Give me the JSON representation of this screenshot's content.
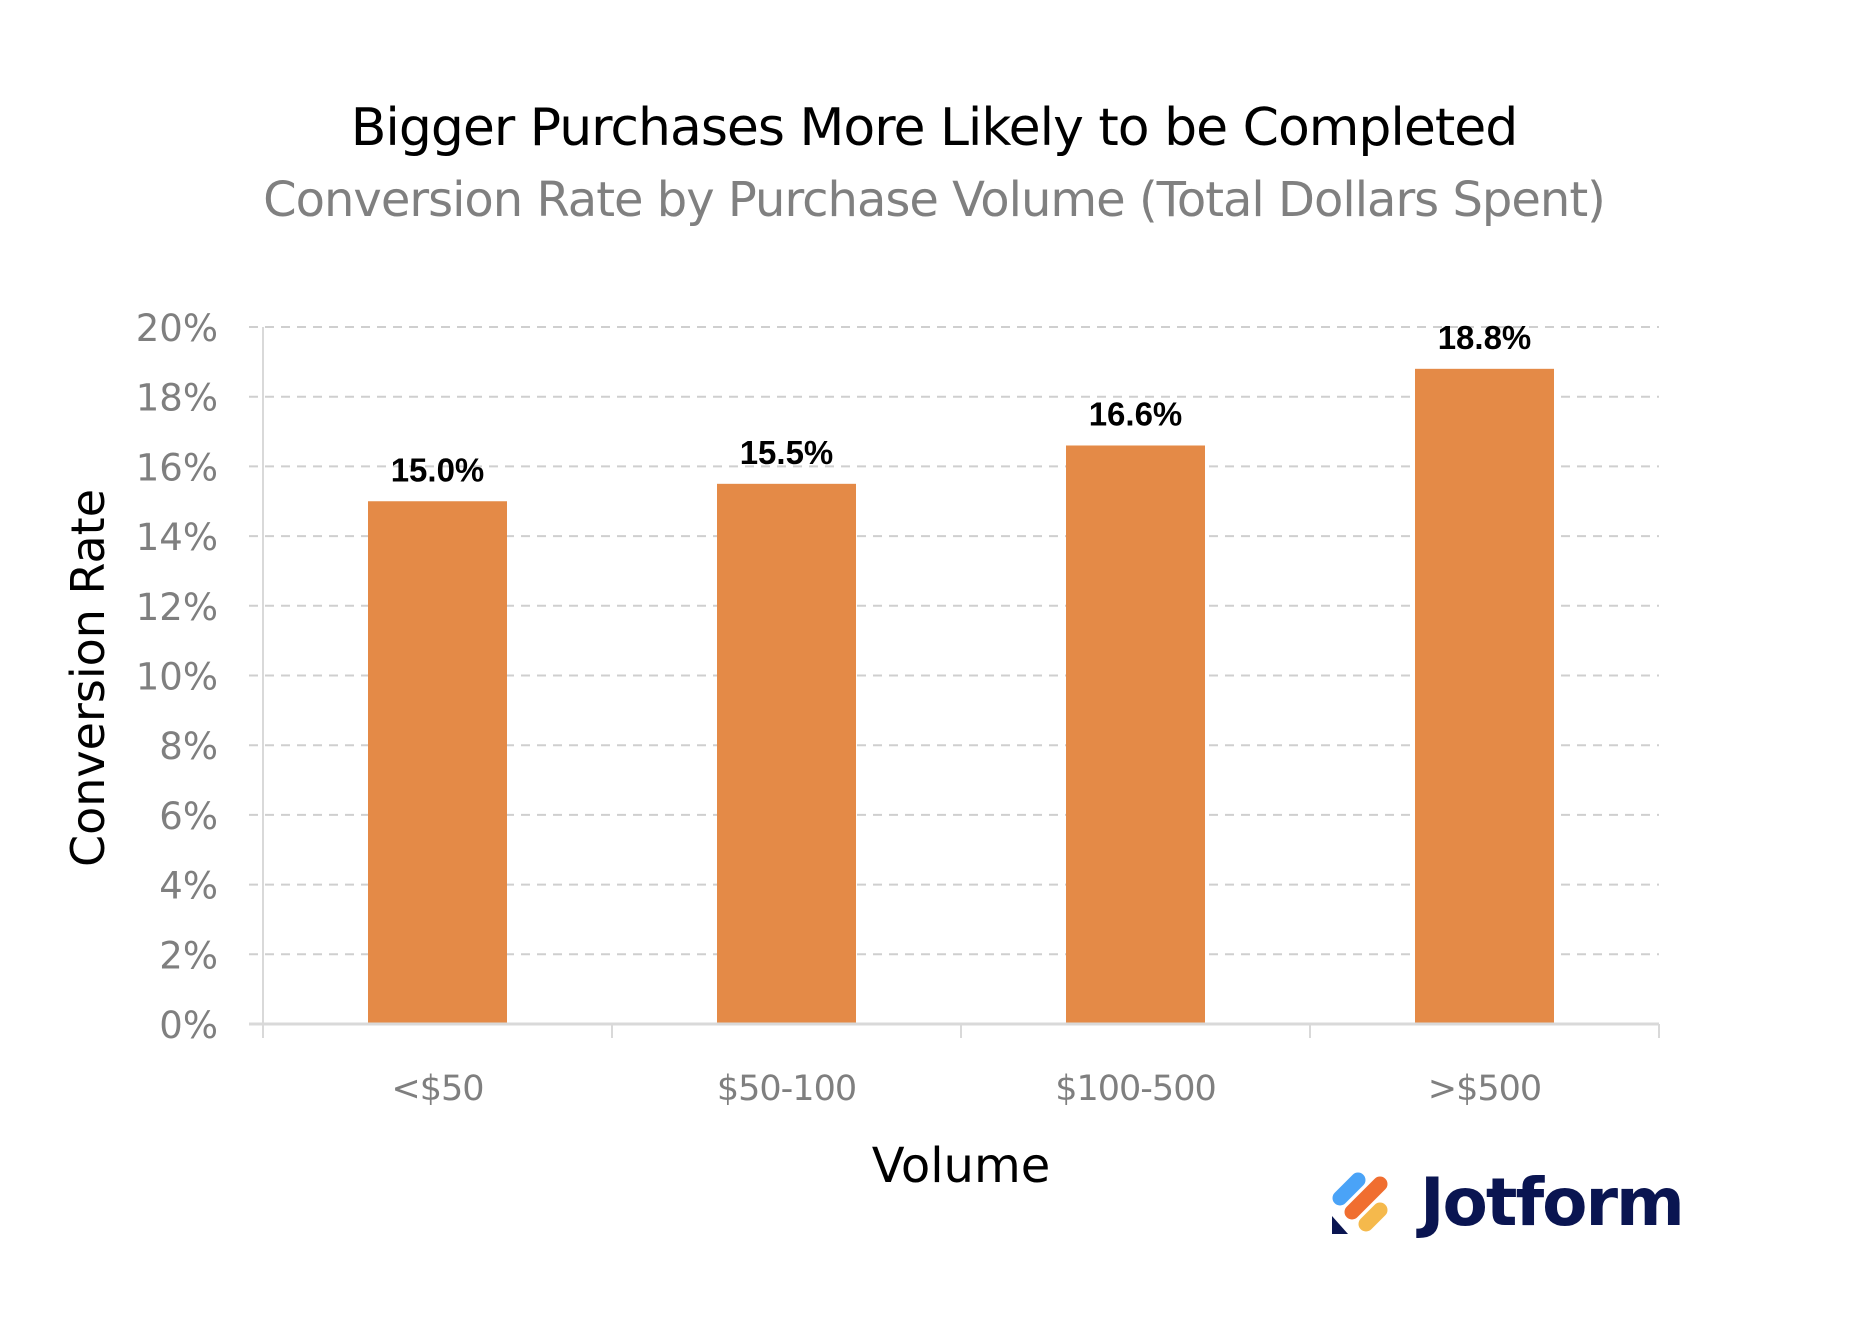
{
  "chart_data": {
    "type": "bar",
    "title": "Bigger Purchases More Likely to be Completed",
    "subtitle": "Conversion Rate by Purchase Volume (Total Dollars Spent)",
    "xlabel": "Volume",
    "ylabel": "Conversion Rate",
    "categories": [
      "<$50",
      "$50-100",
      "$100-500",
      ">$500"
    ],
    "values": [
      15.0,
      15.5,
      16.6,
      18.8
    ],
    "data_labels": [
      "15.0%",
      "15.5%",
      "16.6%",
      "18.8%"
    ],
    "ylim": [
      0,
      20
    ],
    "yticks": [
      0,
      2,
      4,
      6,
      8,
      10,
      12,
      14,
      16,
      18,
      20
    ],
    "ytick_labels": [
      "0%",
      "2%",
      "4%",
      "6%",
      "8%",
      "10%",
      "12%",
      "14%",
      "16%",
      "18%",
      "20%"
    ],
    "grid": true,
    "legend": "none",
    "colors": {
      "bar": "#e48a47",
      "gridline": "#cfcfcf",
      "axis": "#d9d9d9",
      "tick_label": "#7f7f7f",
      "title": "#000000",
      "subtitle": "#808080"
    }
  },
  "branding": {
    "logo_text": "Jotform",
    "logo_colors": [
      "#4aa3f7",
      "#f06e30",
      "#f5b94c",
      "#0a1551"
    ]
  }
}
